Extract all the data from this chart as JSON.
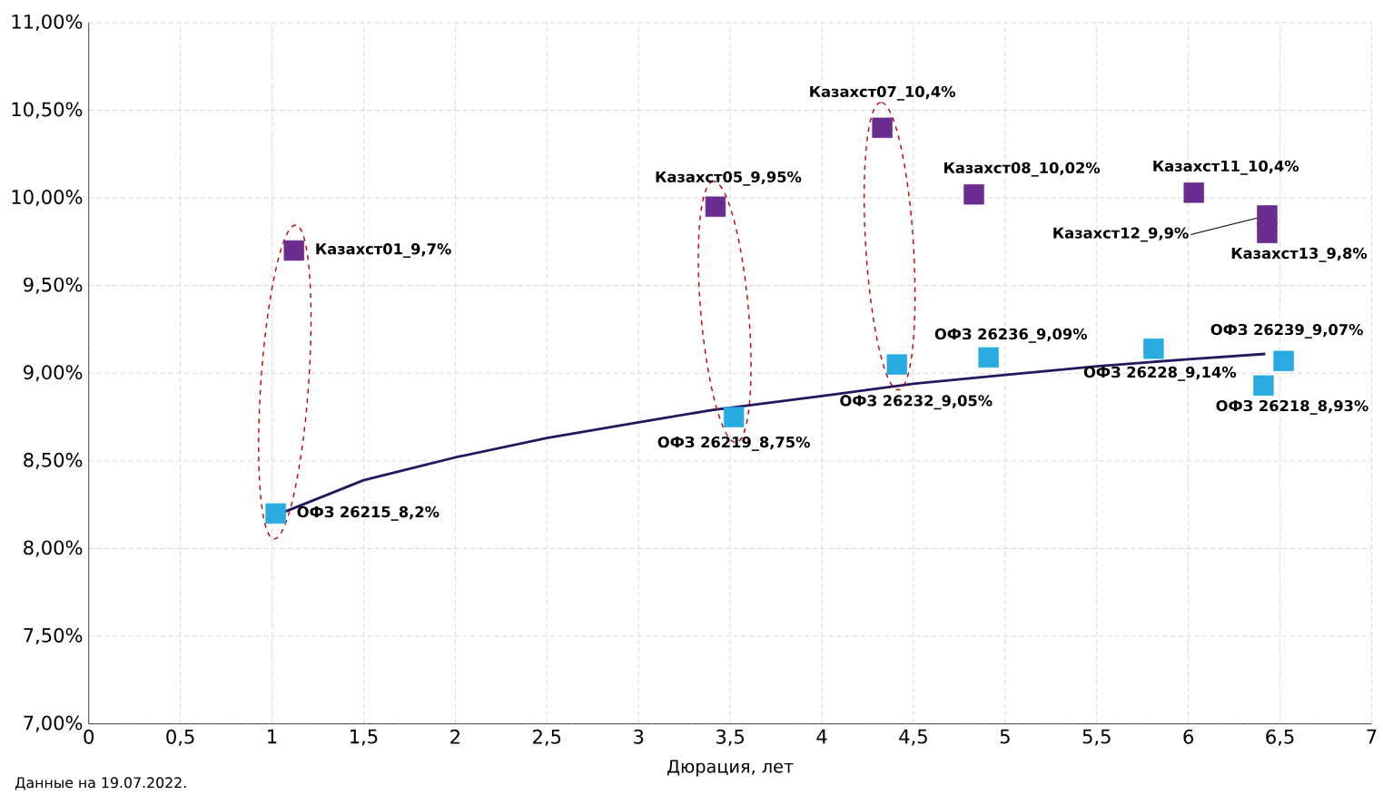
{
  "chart_data": {
    "type": "scatter",
    "xlabel": "Дюрация, лет",
    "xlim": [
      0,
      7
    ],
    "ylim": [
      7,
      11
    ],
    "xticks": [
      0,
      {
        "value": 0.5,
        "label": "0,5"
      },
      1,
      {
        "value": 1.5,
        "label": "1,5"
      },
      2,
      {
        "value": 2.5,
        "label": "2,5"
      },
      3,
      {
        "value": 3.5,
        "label": "3,5"
      },
      4,
      {
        "value": 4.5,
        "label": "4,5"
      },
      5,
      {
        "value": 5.5,
        "label": "5,5"
      },
      6,
      {
        "value": 6.5,
        "label": "6,5"
      },
      7
    ],
    "yticks": [
      {
        "value": 7,
        "label": "7,00%"
      },
      {
        "value": 7.5,
        "label": "7,50%"
      },
      {
        "value": 8,
        "label": "8,00%"
      },
      {
        "value": 8.5,
        "label": "8,50%"
      },
      {
        "value": 9,
        "label": "9,00%"
      },
      {
        "value": 9.5,
        "label": "9,50%"
      },
      {
        "value": 10,
        "label": "10,00%"
      },
      {
        "value": 10.5,
        "label": "10,50%"
      },
      {
        "value": 11,
        "label": "11,00%"
      }
    ],
    "grid": true,
    "marker": "square",
    "series": [
      {
        "type": "scatter",
        "color": "#6a2c8f",
        "x": [
          1.12,
          3.42,
          4.33,
          4.83,
          6.03,
          6.43,
          6.43
        ],
        "values": [
          9.7,
          9.95,
          10.4,
          10.02,
          10.03,
          9.9,
          9.8
        ]
      },
      {
        "type": "scatter",
        "color": "#29abe2",
        "x": [
          1.02,
          3.52,
          4.41,
          4.91,
          5.81,
          6.41,
          6.52
        ],
        "values": [
          8.2,
          8.75,
          9.05,
          9.09,
          9.14,
          8.93,
          9.07
        ]
      },
      {
        "type": "line",
        "color": "#1f1a5e",
        "marker": "none",
        "line_style": "solid",
        "x": [
          1.07,
          1.5,
          2,
          2.5,
          3,
          3.4,
          4,
          4.5,
          5,
          5.5,
          6,
          6.42
        ],
        "values": [
          8.21,
          8.39,
          8.52,
          8.63,
          8.72,
          8.79,
          8.87,
          8.94,
          8.99,
          9.04,
          9.08,
          9.11
        ]
      }
    ],
    "annotations": [
      {
        "text": "Казахст01_9,7%",
        "x": 1.12,
        "y": 9.7
      },
      {
        "text": "Казахст05_9,95%",
        "x": 3.42,
        "y": 9.95
      },
      {
        "text": "Казахст07_10,4%",
        "x": 4.33,
        "y": 10.4
      },
      {
        "text": "Казахст08_10,02%",
        "x": 4.83,
        "y": 10.02
      },
      {
        "text": "Казахст11_10,4%",
        "x": 6.03,
        "y": 10.03
      },
      {
        "text": "Казахст12_9,9%",
        "x": 6.43,
        "y": 9.9
      },
      {
        "text": "Казахст13_9,8%",
        "x": 6.43,
        "y": 9.8
      },
      {
        "text": "ОФЗ 26215_8,2%",
        "x": 1.02,
        "y": 8.2
      },
      {
        "text": "ОФЗ 26219_8,75%",
        "x": 3.52,
        "y": 8.75
      },
      {
        "text": "ОФЗ 26232_9,05%",
        "x": 4.41,
        "y": 9.05
      },
      {
        "text": "ОФЗ 26236_9,09%",
        "x": 4.91,
        "y": 9.09
      },
      {
        "text": "ОФЗ 26228_9,14%",
        "x": 5.81,
        "y": 9.14
      },
      {
        "text": "ОФЗ 26218_8,93%",
        "x": 6.41,
        "y": 8.93
      },
      {
        "text": "ОФЗ 26239_9,07%",
        "x": 6.52,
        "y": 9.07
      },
      "Данные на 19.07.2022."
    ]
  }
}
